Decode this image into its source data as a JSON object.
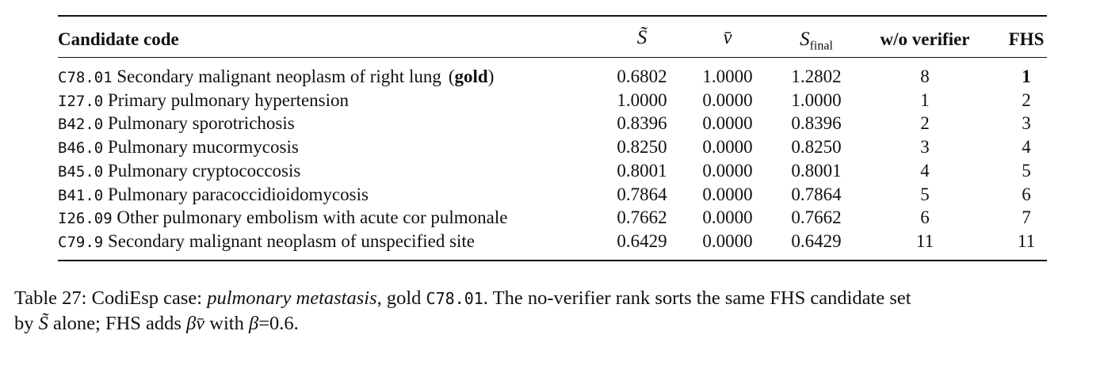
{
  "table": {
    "header": {
      "code": "Candidate code",
      "s": "S̃",
      "v": "v̄",
      "s_final": {
        "base": "S",
        "sub": "final"
      },
      "no_verifier": "w/o verifier",
      "fhs": "FHS"
    },
    "rows": [
      {
        "code": "C78.01",
        "desc": "Secondary malignant neoplasm of right lung",
        "tag": {
          "open": "(",
          "text": "gold",
          "close": ")"
        },
        "s": "0.6802",
        "v": "1.0000",
        "s_final": "1.2802",
        "no_verifier": "8",
        "fhs": "1",
        "fhs_bold": true
      },
      {
        "code": "I27.0",
        "desc": "Primary pulmonary hypertension",
        "s": "1.0000",
        "v": "0.0000",
        "s_final": "1.0000",
        "no_verifier": "1",
        "fhs": "2"
      },
      {
        "code": "B42.0",
        "desc": "Pulmonary sporotrichosis",
        "s": "0.8396",
        "v": "0.0000",
        "s_final": "0.8396",
        "no_verifier": "2",
        "fhs": "3"
      },
      {
        "code": "B46.0",
        "desc": "Pulmonary mucormycosis",
        "s": "0.8250",
        "v": "0.0000",
        "s_final": "0.8250",
        "no_verifier": "3",
        "fhs": "4"
      },
      {
        "code": "B45.0",
        "desc": "Pulmonary cryptococcosis",
        "s": "0.8001",
        "v": "0.0000",
        "s_final": "0.8001",
        "no_verifier": "4",
        "fhs": "5"
      },
      {
        "code": "B41.0",
        "desc": "Pulmonary paracoccidioidomycosis",
        "s": "0.7864",
        "v": "0.0000",
        "s_final": "0.7864",
        "no_verifier": "5",
        "fhs": "6"
      },
      {
        "code": "I26.09",
        "desc": "Other pulmonary embolism with acute cor pulmonale",
        "s": "0.7662",
        "v": "0.0000",
        "s_final": "0.7662",
        "no_verifier": "6",
        "fhs": "7"
      },
      {
        "code": "C79.9",
        "desc": "Secondary malignant neoplasm of unspecified site",
        "s": "0.6429",
        "v": "0.0000",
        "s_final": "0.6429",
        "no_verifier": "11",
        "fhs": "11"
      }
    ]
  },
  "caption": {
    "lines": [
      [
        {
          "text": "Table 27: CodiEsp case: "
        },
        {
          "text": "pulmonary metastasis",
          "style": "italic"
        },
        {
          "text": ", gold "
        },
        {
          "text": "C78.01",
          "style": "mono"
        },
        {
          "text": ". The no-verifier rank sorts the same FHS candidate set"
        }
      ],
      [
        {
          "text": "by "
        },
        {
          "text": "S̃",
          "style": "italic"
        },
        {
          "text": " alone; FHS adds "
        },
        {
          "text": "βv̄",
          "style": "italic"
        },
        {
          "text": " with "
        },
        {
          "text": "β",
          "style": "italic"
        },
        {
          "text": "=0.6."
        }
      ]
    ]
  }
}
